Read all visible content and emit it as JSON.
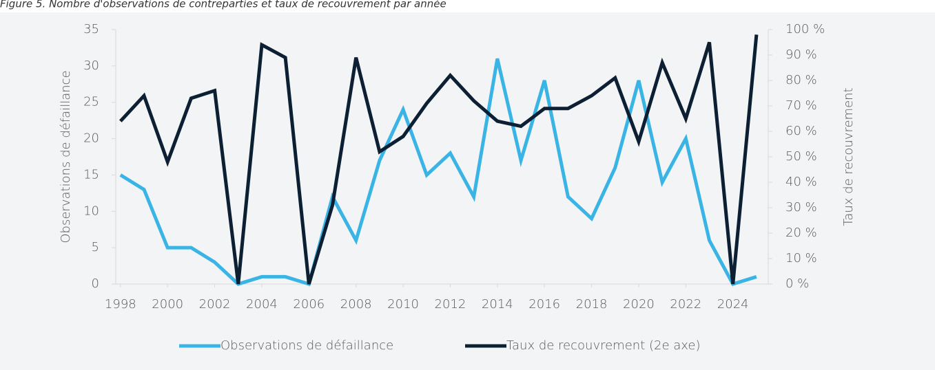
{
  "chart_data": {
    "type": "line",
    "title": "Figure 5. Nombre d'observations de contreparties et taux de recouvrement par année",
    "y_label": "Observations de défaillance",
    "y2_label": "Taux de recouvrement",
    "x": [
      1998,
      1999,
      2000,
      2001,
      2002,
      2003,
      2004,
      2005,
      2006,
      2007,
      2008,
      2009,
      2010,
      2011,
      2012,
      2013,
      2014,
      2015,
      2016,
      2017,
      2018,
      2019,
      2020,
      2021,
      2022,
      2023,
      2024,
      2025
    ],
    "xlim": [
      1997.8,
      2025.5
    ],
    "xticks": [
      1998,
      2000,
      2002,
      2004,
      2006,
      2008,
      2010,
      2012,
      2014,
      2016,
      2018,
      2020,
      2022,
      2024
    ],
    "ylim": [
      0,
      35
    ],
    "yticks": [
      0,
      5,
      10,
      15,
      20,
      25,
      30,
      35
    ],
    "y2lim": [
      0,
      100
    ],
    "y2ticks": [
      {
        "value": 0,
        "label": "0 %"
      },
      {
        "value": 10,
        "label": "10 %"
      },
      {
        "value": 20,
        "label": "20 %"
      },
      {
        "value": 30,
        "label": "30 %"
      },
      {
        "value": 40,
        "label": "40 %"
      },
      {
        "value": 50,
        "label": "50 %"
      },
      {
        "value": 60,
        "label": "60 %"
      },
      {
        "value": 70,
        "label": "70 %"
      },
      {
        "value": 80,
        "label": "80 %"
      },
      {
        "value": 90,
        "label": "90 %"
      },
      {
        "value": 100,
        "label": "100 %"
      }
    ],
    "legend": "bottom",
    "series": [
      {
        "name": "Observations de défaillance",
        "color": "#3ab4e5",
        "values": [
          15,
          13,
          5,
          5,
          3,
          0,
          1,
          1,
          0,
          12,
          6,
          17,
          24,
          15,
          18,
          12,
          31,
          17,
          28,
          12,
          9,
          16,
          28,
          14,
          20,
          6,
          0,
          1
        ]
      },
      {
        "name": "Taux de recouvrement (2e axe)",
        "color": "#0d1f33",
        "axis": "y2",
        "values": [
          64,
          74,
          48,
          73,
          76,
          0,
          94,
          89,
          0,
          31,
          89,
          52,
          58,
          71,
          82,
          72,
          64,
          62,
          69,
          69,
          74,
          81,
          56,
          87,
          65,
          95,
          0,
          98
        ]
      }
    ]
  }
}
